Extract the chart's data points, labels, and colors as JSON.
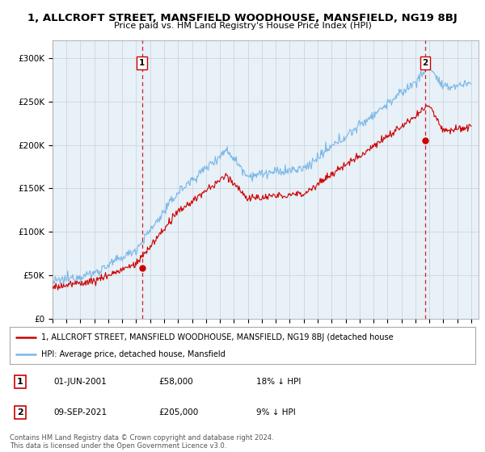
{
  "title": "1, ALLCROFT STREET, MANSFIELD WOODHOUSE, MANSFIELD, NG19 8BJ",
  "subtitle": "Price paid vs. HM Land Registry's House Price Index (HPI)",
  "ylim": [
    0,
    320000
  ],
  "yticks": [
    0,
    50000,
    100000,
    150000,
    200000,
    250000,
    300000
  ],
  "ytick_labels": [
    "£0",
    "£50K",
    "£100K",
    "£150K",
    "£200K",
    "£250K",
    "£300K"
  ],
  "hpi_color": "#7ab8e8",
  "price_color": "#cc0000",
  "vline_color": "#cc0000",
  "chart_bg": "#e8f0f8",
  "sale1_year": 2001.42,
  "sale1_price": 58000,
  "sale1_label": "1",
  "sale2_year": 2021.69,
  "sale2_price": 205000,
  "sale2_label": "2",
  "legend_line1": "1, ALLCROFT STREET, MANSFIELD WOODHOUSE, MANSFIELD, NG19 8BJ (detached house",
  "legend_line2": "HPI: Average price, detached house, Mansfield",
  "table_row1": [
    "1",
    "01-JUN-2001",
    "£58,000",
    "18% ↓ HPI"
  ],
  "table_row2": [
    "2",
    "09-SEP-2021",
    "£205,000",
    "9% ↓ HPI"
  ],
  "footnote": "Contains HM Land Registry data © Crown copyright and database right 2024.\nThis data is licensed under the Open Government Licence v3.0.",
  "background_color": "#ffffff",
  "grid_color": "#c8d0d8"
}
